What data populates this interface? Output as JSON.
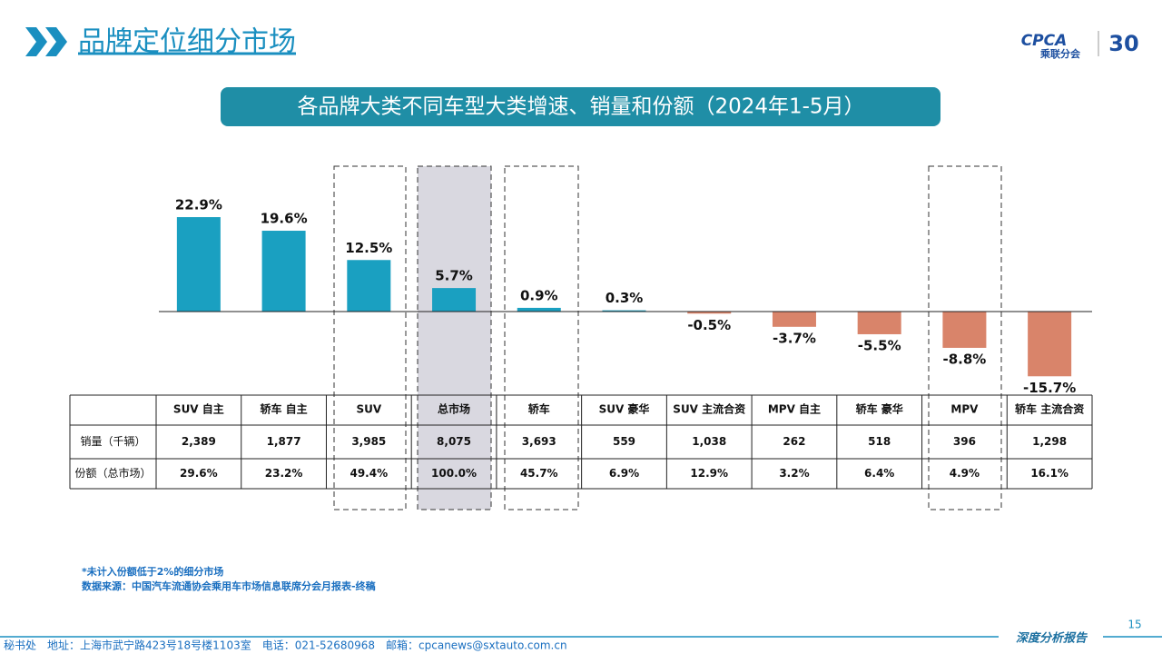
{
  "header": {
    "title": "品牌定位细分市场",
    "logo": {
      "name": "CPCA",
      "subtitle": "乘联分会",
      "anniversary": "30"
    }
  },
  "chart_data": {
    "type": "bar",
    "title": "各品牌大类不同车型大类增速、销量和份额（2024年1-5月）",
    "categories": [
      "SUV 自主",
      "轿车 自主",
      "SUV",
      "总市场",
      "轿车",
      "SUV 豪华",
      "SUV 主流合资",
      "MPV 自主",
      "轿车 豪华",
      "MPV",
      "轿车 主流合资"
    ],
    "values": [
      22.9,
      19.6,
      12.5,
      5.7,
      0.9,
      0.3,
      -0.5,
      -3.7,
      -5.5,
      -8.8,
      -15.7
    ],
    "value_labels": [
      "22.9%",
      "19.6%",
      "12.5%",
      "5.7%",
      "0.9%",
      "0.3%",
      "-0.5%",
      "-3.7%",
      "-5.5%",
      "-8.8%",
      "-15.7%"
    ],
    "color": "#1aa0c1",
    "negative_color": "#d9846a"
  },
  "table": {
    "rows": [
      {
        "label": "销量（千辆）",
        "cells": [
          "2,389",
          "1,877",
          "3,985",
          "8,075",
          "3,693",
          "559",
          "1,038",
          "262",
          "518",
          "396",
          "1,298"
        ]
      },
      {
        "label": "份额（总市场）",
        "cells": [
          "29.6%",
          "23.2%",
          "49.4%",
          "100.0%",
          "45.7%",
          "6.9%",
          "12.9%",
          "3.2%",
          "6.4%",
          "4.9%",
          "16.1%"
        ]
      }
    ]
  },
  "footnotes": [
    "*未计入份额低于2%的细分市场",
    "数据来源：中国汽车流通协会乘用车市场信息联席分会月报表-终稿"
  ],
  "footer": {
    "contact": "秘书处　地址：上海市武宁路423号18号楼1103室　电话：021-52680968　邮箱：cpcanews@sxtauto.com.cn",
    "report": "深度分析报告",
    "page": "15"
  }
}
